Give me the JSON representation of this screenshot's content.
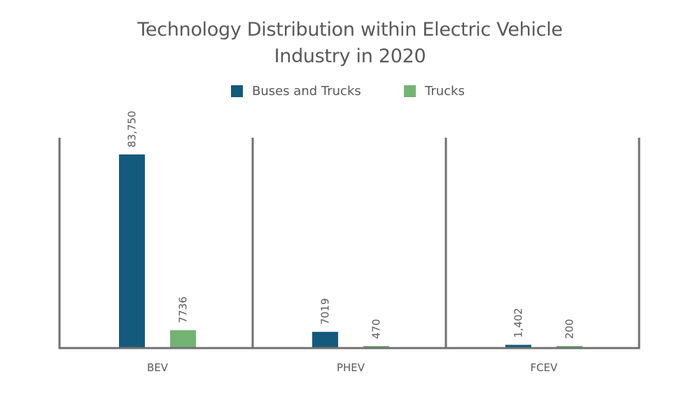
{
  "chart_data": {
    "type": "bar",
    "title": "Technology Distribution within Electric Vehicle Industry in 2020",
    "title_lines": [
      "Technology Distribution within Electric Vehicle",
      "Industry in 2020"
    ],
    "categories": [
      "BEV",
      "PHEV",
      "FCEV"
    ],
    "series": [
      {
        "name": "Buses and Trucks",
        "color": "#145a7c",
        "values": [
          83750,
          7019,
          1402
        ],
        "labels": [
          "83,750",
          "7019",
          "1,402"
        ]
      },
      {
        "name": "Trucks",
        "color": "#73b474",
        "values": [
          7736,
          470,
          200
        ],
        "labels": [
          "7736",
          "470",
          "200"
        ]
      }
    ],
    "xlabel": "",
    "ylabel": "",
    "ylim": [
      0,
      91000
    ],
    "grid": false,
    "legend_position": "top-center",
    "axis_color": "#707070"
  }
}
